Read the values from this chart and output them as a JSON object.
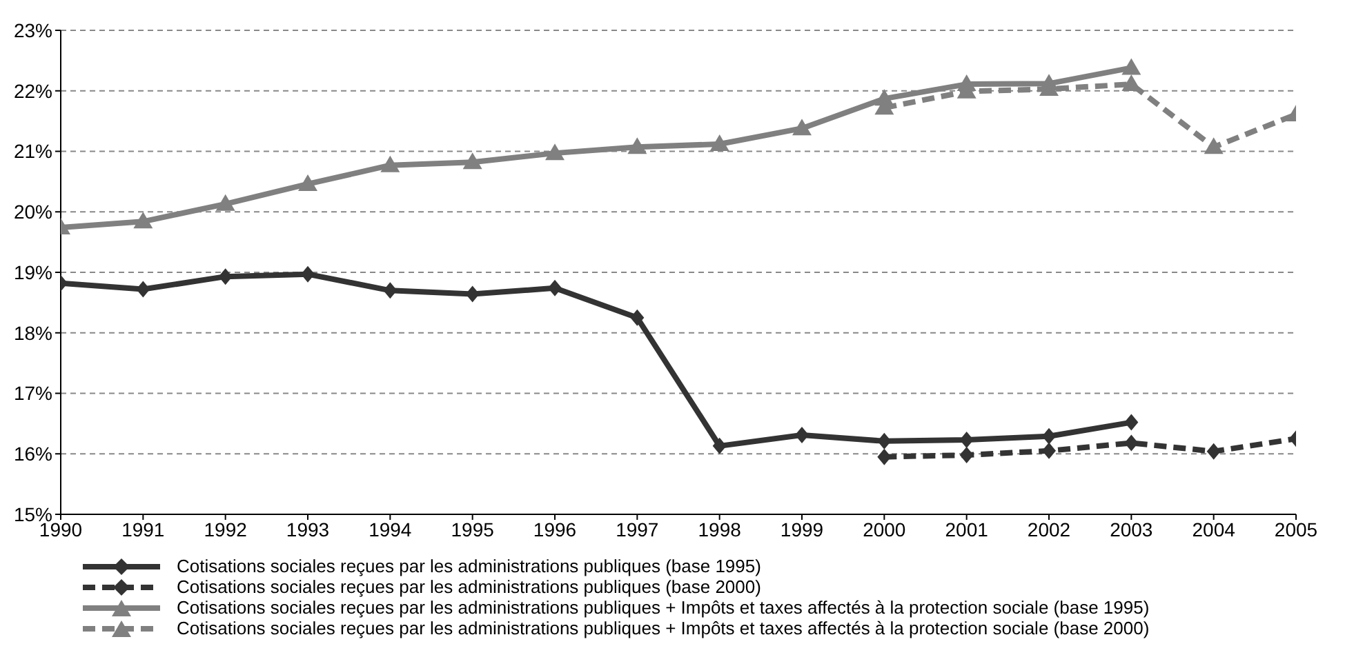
{
  "chart_data": {
    "type": "line",
    "x": [
      1990,
      1991,
      1992,
      1993,
      1994,
      1995,
      1996,
      1997,
      1998,
      1999,
      2000,
      2001,
      2002,
      2003,
      2004,
      2005
    ],
    "xlim": [
      1990,
      2005
    ],
    "xticks": [
      1990,
      1991,
      1992,
      1993,
      1994,
      1995,
      1996,
      1997,
      1998,
      1999,
      2000,
      2001,
      2002,
      2003,
      2004,
      2005
    ],
    "ylim": [
      15,
      23
    ],
    "yticks": [
      {
        "value": 15,
        "label": "15%"
      },
      {
        "value": 16,
        "label": "16%"
      },
      {
        "value": 17,
        "label": "17%"
      },
      {
        "value": 18,
        "label": "18%"
      },
      {
        "value": 19,
        "label": "19%"
      },
      {
        "value": 20,
        "label": "20%"
      },
      {
        "value": 21,
        "label": "21%"
      },
      {
        "value": 22,
        "label": "22%"
      },
      {
        "value": 23,
        "label": "23%"
      }
    ],
    "grid": "y",
    "legend": "bottom",
    "series": [
      {
        "name": "Cotisations sociales reçues par les administrations publiques (base 1995)",
        "color": "#333333",
        "marker": "diamond",
        "line_style": "solid",
        "values": [
          18.82,
          18.72,
          18.93,
          18.97,
          18.7,
          18.64,
          18.74,
          18.25,
          16.13,
          16.31,
          16.21,
          16.23,
          16.29,
          16.52,
          null,
          null
        ]
      },
      {
        "name": "Cotisations sociales reçues par les administrations publiques (base 2000)",
        "color": "#333333",
        "marker": "diamond",
        "line_style": "dashed",
        "values": [
          null,
          null,
          null,
          null,
          null,
          null,
          null,
          null,
          null,
          null,
          15.95,
          15.98,
          16.05,
          16.18,
          16.04,
          16.25
        ]
      },
      {
        "name": "Cotisations sociales reçues par les administrations publiques + Impôts et taxes affectés à la protection sociale (base 1995)",
        "color": "#808080",
        "marker": "triangle",
        "line_style": "solid",
        "values": [
          19.74,
          19.84,
          20.13,
          20.46,
          20.77,
          20.82,
          20.97,
          21.07,
          21.12,
          21.38,
          21.87,
          22.11,
          22.12,
          22.38,
          null,
          null
        ]
      },
      {
        "name": "Cotisations sociales reçues par les administrations publiques + Impôts et taxes affectés à la protection sociale (base 2000)",
        "color": "#808080",
        "marker": "triangle",
        "line_style": "dashed",
        "values": [
          null,
          null,
          null,
          null,
          null,
          null,
          null,
          null,
          null,
          null,
          21.72,
          21.99,
          22.03,
          22.11,
          21.07,
          21.61
        ]
      }
    ]
  }
}
